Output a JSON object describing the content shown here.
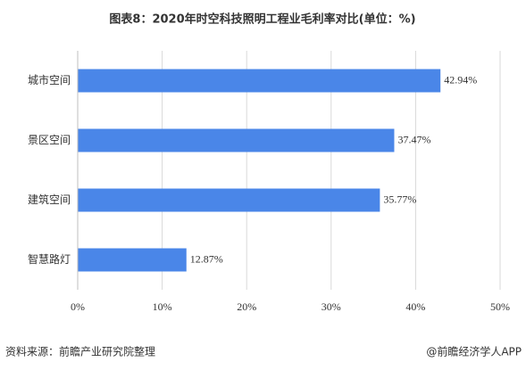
{
  "chart_data": {
    "type": "barh",
    "title": "图表8：2020年时空科技照明工程业毛利率对比(单位：%)",
    "categories": [
      "城市空间",
      "景区空间",
      "建筑空间",
      "智慧路灯"
    ],
    "values": [
      42.94,
      37.47,
      35.77,
      12.87
    ],
    "value_labels": [
      "42.94%",
      "37.47%",
      "35.77%",
      "12.87%"
    ],
    "color": "#4a86e8",
    "xlim": [
      0,
      50
    ],
    "xticks": [
      {
        "value": 0,
        "label": "0%"
      },
      {
        "value": 10,
        "label": "10%"
      },
      {
        "value": 20,
        "label": "20%"
      },
      {
        "value": 30,
        "label": "30%"
      },
      {
        "value": 40,
        "label": "40%"
      },
      {
        "value": 50,
        "label": "50%"
      }
    ],
    "grid": true,
    "source": "资料来源：前瞻产业研究院整理",
    "brand": "@前瞻经济学人APP"
  }
}
